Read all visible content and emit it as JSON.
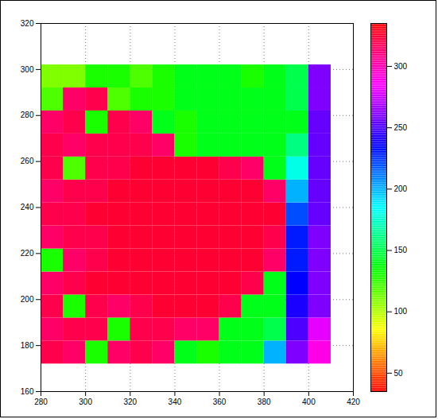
{
  "chart_data": {
    "type": "heatmap",
    "x_bins": [
      280,
      290,
      300,
      310,
      320,
      330,
      340,
      350,
      360,
      370,
      380,
      390,
      400,
      410
    ],
    "y_bins": [
      172,
      182,
      192,
      202,
      212,
      222,
      232,
      242,
      252,
      262,
      272,
      282,
      292,
      302
    ],
    "z": [
      [
        320,
        315,
        130,
        315,
        320,
        315,
        140,
        130,
        140,
        140,
        200,
        260,
        290
      ],
      [
        315,
        320,
        320,
        130,
        320,
        320,
        315,
        315,
        140,
        140,
        150,
        250,
        280
      ],
      [
        320,
        130,
        320,
        315,
        320,
        325,
        325,
        325,
        320,
        140,
        140,
        240,
        260
      ],
      [
        315,
        320,
        325,
        325,
        325,
        325,
        325,
        325,
        325,
        320,
        140,
        235,
        260
      ],
      [
        130,
        315,
        320,
        325,
        325,
        325,
        325,
        325,
        325,
        325,
        315,
        230,
        260
      ],
      [
        315,
        320,
        320,
        325,
        325,
        325,
        325,
        325,
        325,
        325,
        320,
        230,
        260
      ],
      [
        320,
        320,
        325,
        325,
        325,
        325,
        325,
        325,
        325,
        325,
        325,
        220,
        255
      ],
      [
        315,
        320,
        320,
        325,
        325,
        325,
        325,
        325,
        325,
        325,
        315,
        200,
        255
      ],
      [
        320,
        120,
        320,
        320,
        325,
        325,
        325,
        325,
        320,
        315,
        140,
        180,
        255
      ],
      [
        320,
        315,
        320,
        320,
        320,
        315,
        130,
        140,
        140,
        140,
        140,
        160,
        255
      ],
      [
        315,
        320,
        130,
        320,
        315,
        140,
        130,
        140,
        140,
        140,
        140,
        140,
        255
      ],
      [
        120,
        315,
        320,
        120,
        130,
        130,
        140,
        140,
        140,
        140,
        140,
        150,
        260
      ],
      [
        110,
        110,
        130,
        130,
        120,
        130,
        140,
        140,
        140,
        130,
        140,
        150,
        260
      ]
    ],
    "xlim": [
      280,
      420
    ],
    "xticks": [
      280,
      300,
      320,
      340,
      360,
      380,
      400,
      420
    ],
    "ylim": [
      160,
      320
    ],
    "yticks": [
      160,
      180,
      200,
      220,
      240,
      260,
      280,
      300,
      320
    ],
    "grid": true,
    "colorbar": {
      "range": [
        35,
        335
      ],
      "ticks": [
        50,
        100,
        150,
        200,
        250,
        300
      ]
    }
  }
}
